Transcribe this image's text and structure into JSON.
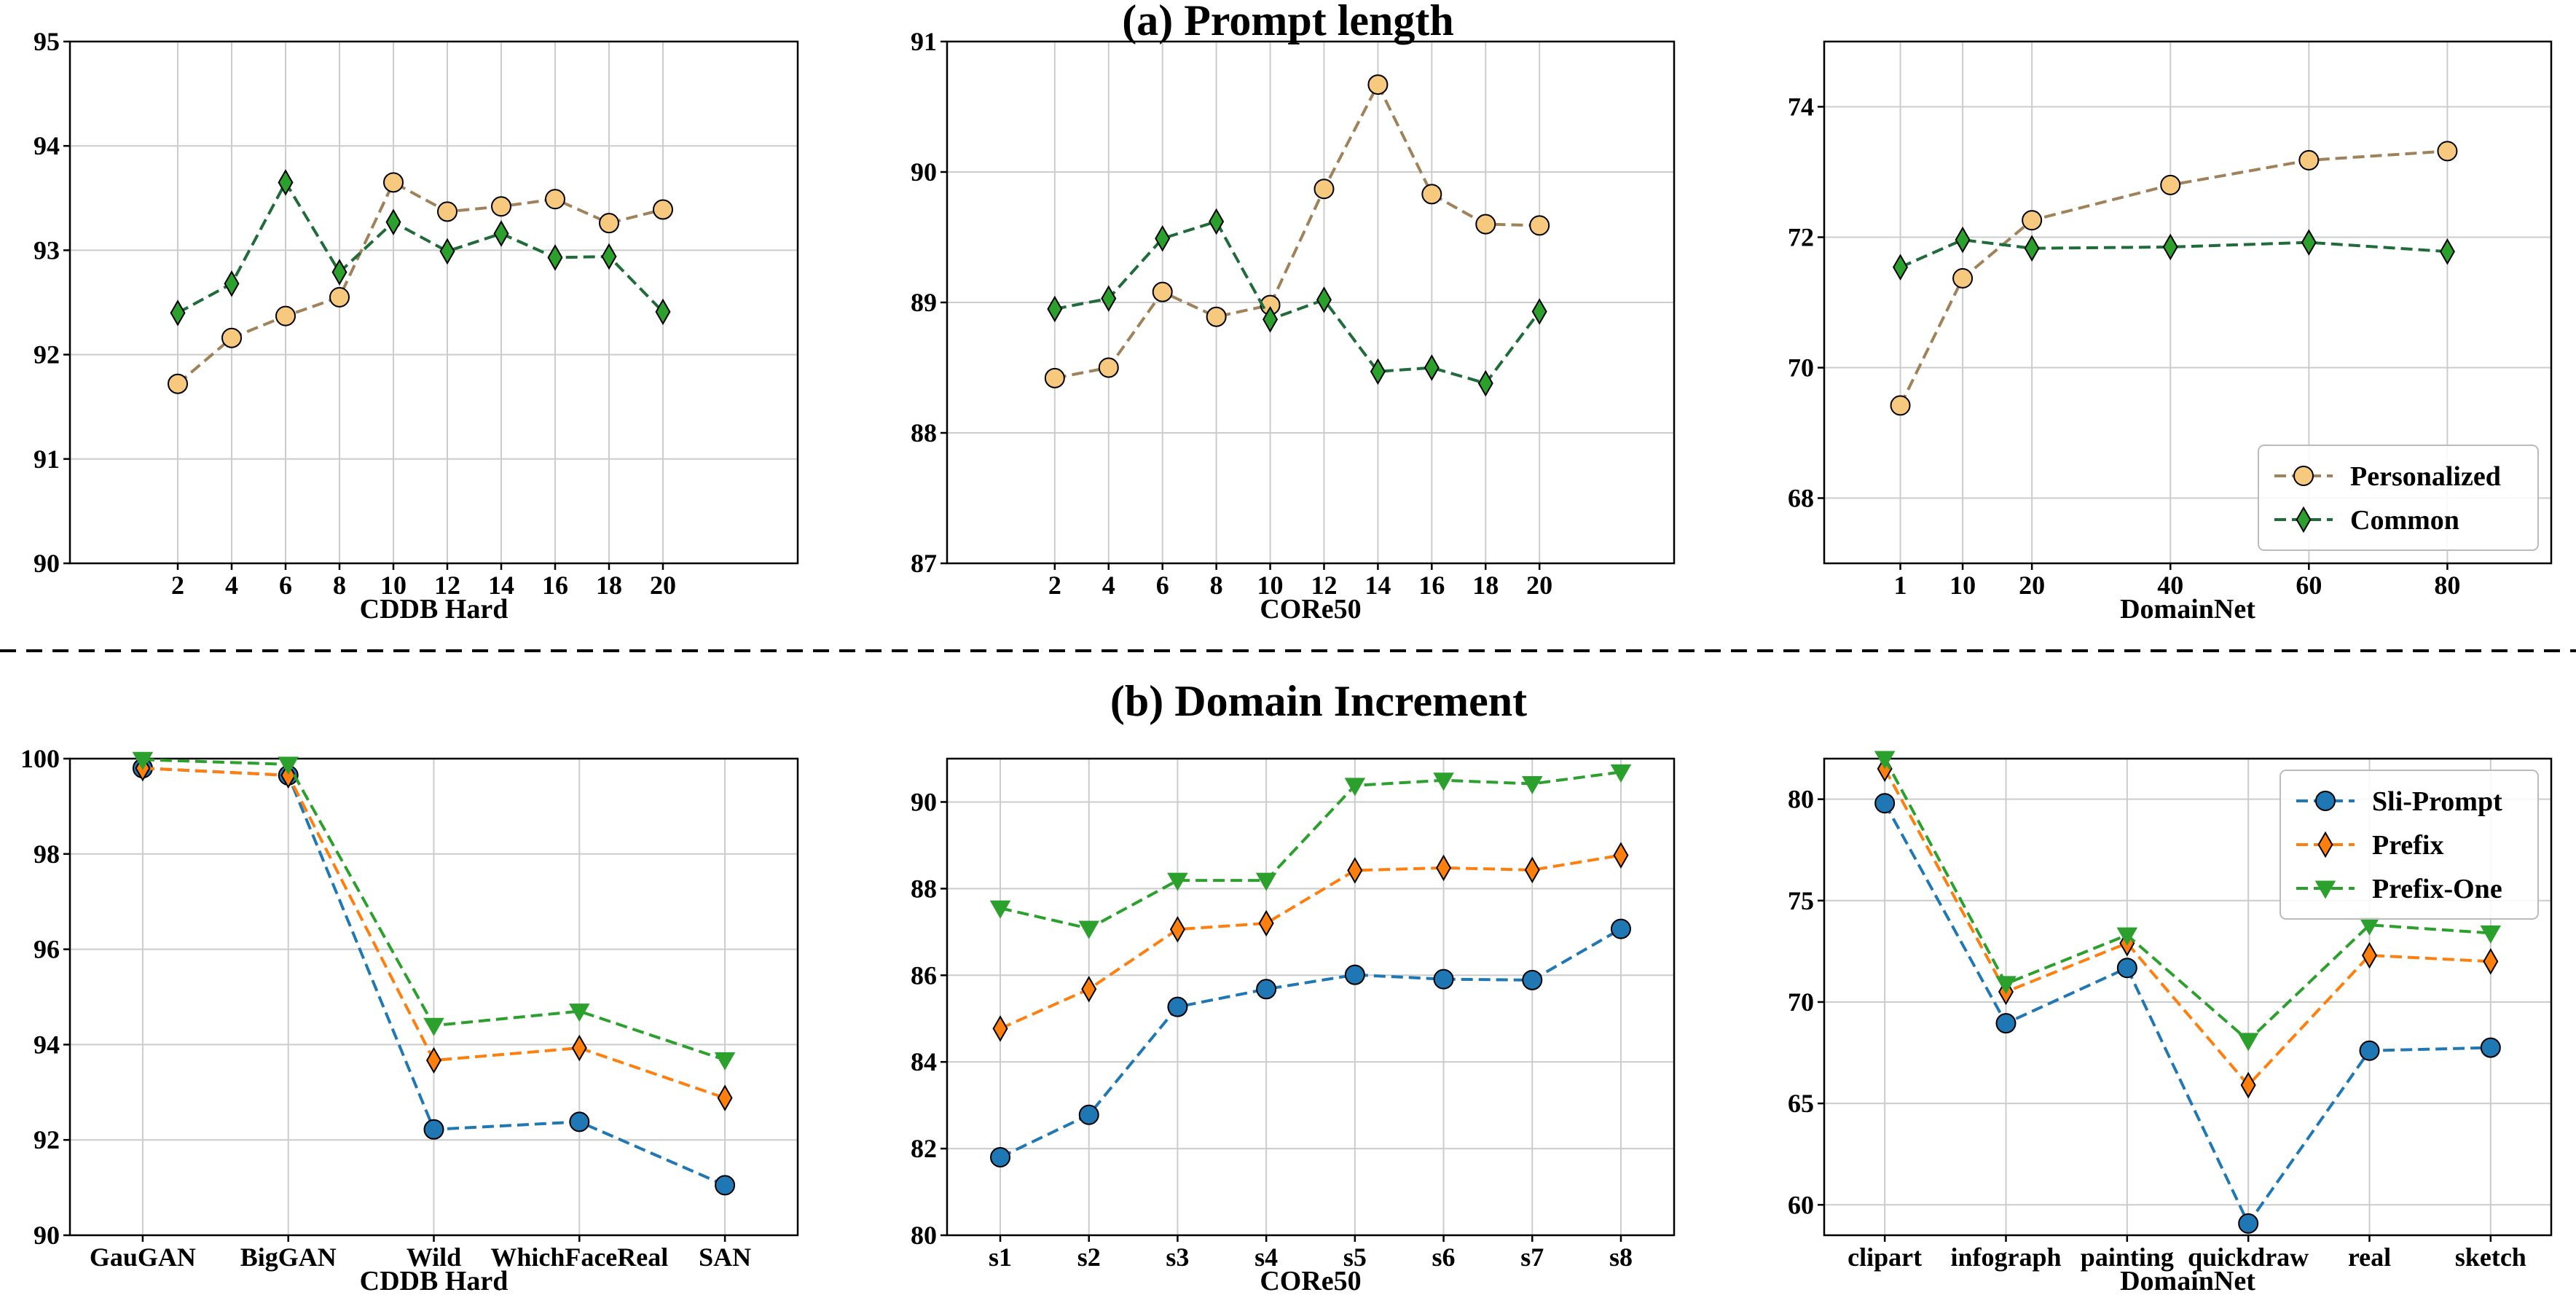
{
  "sections": {
    "a_title": "(a) Prompt length",
    "b_title": "(b) Domain Increment"
  },
  "colors": {
    "personalized": "#a0825a",
    "personalized_fill": "#f6c97f",
    "common": "#1f6b3a",
    "common_fill": "#2ca02c",
    "sli_prompt": "#1f77b4",
    "prefix": "#ff7f0e",
    "prefix_one": "#2ca02c",
    "grid": "#cccccc"
  },
  "chart_data": [
    {
      "id": "a1",
      "type": "line",
      "xlabel": "CDDB Hard",
      "x_type": "numeric",
      "x": [
        2,
        4,
        6,
        8,
        10,
        12,
        14,
        16,
        18,
        20
      ],
      "xlim": [
        -2,
        25
      ],
      "ylim": [
        90,
        95
      ],
      "yticks": [
        90,
        91,
        92,
        93,
        94,
        95
      ],
      "grid": true,
      "series": [
        {
          "key": "personalized",
          "marker": "circle",
          "values": [
            91.72,
            92.16,
            92.37,
            92.55,
            93.65,
            93.37,
            93.42,
            93.49,
            93.26,
            93.39
          ]
        },
        {
          "key": "common",
          "marker": "diamond",
          "values": [
            92.4,
            92.68,
            93.65,
            92.79,
            93.27,
            92.99,
            93.16,
            92.93,
            92.94,
            92.41
          ]
        }
      ]
    },
    {
      "id": "a2",
      "type": "line",
      "xlabel": "CORe50",
      "x_type": "numeric",
      "x": [
        2,
        4,
        6,
        8,
        10,
        12,
        14,
        16,
        18,
        20
      ],
      "xlim": [
        -2,
        25
      ],
      "ylim": [
        87,
        91
      ],
      "yticks": [
        87,
        88,
        89,
        90,
        91
      ],
      "grid": true,
      "series": [
        {
          "key": "personalized",
          "marker": "circle",
          "values": [
            88.42,
            88.5,
            89.08,
            88.89,
            88.98,
            89.87,
            90.67,
            89.83,
            89.6,
            89.59
          ]
        },
        {
          "key": "common",
          "marker": "diamond",
          "values": [
            88.95,
            89.03,
            89.49,
            89.62,
            88.87,
            89.02,
            88.47,
            88.5,
            88.38,
            88.93
          ]
        }
      ]
    },
    {
      "id": "a3",
      "type": "line",
      "xlabel": "DomainNet",
      "x_type": "numeric",
      "x": [
        1,
        10,
        20,
        40,
        60,
        80
      ],
      "xlim": [
        -10,
        95
      ],
      "ylim": [
        67,
        75
      ],
      "yticks": [
        68,
        70,
        72,
        74
      ],
      "grid": true,
      "legend": "lower-right",
      "series": [
        {
          "key": "personalized",
          "name": "Personalized",
          "marker": "circle",
          "values": [
            69.42,
            71.37,
            72.26,
            72.8,
            73.18,
            73.32
          ]
        },
        {
          "key": "common",
          "name": "Common",
          "marker": "diamond",
          "values": [
            71.54,
            71.96,
            71.83,
            71.85,
            71.92,
            71.78
          ]
        }
      ]
    },
    {
      "id": "b1",
      "type": "line",
      "xlabel": "CDDB Hard",
      "x_type": "category",
      "categories": [
        "GauGAN",
        "BigGAN",
        "Wild",
        "WhichFaceReal",
        "SAN"
      ],
      "ylim": [
        90,
        100
      ],
      "yticks": [
        90,
        92,
        94,
        96,
        98,
        100
      ],
      "grid": true,
      "series": [
        {
          "key": "sli_prompt",
          "marker": "circle",
          "values": [
            99.8,
            99.65,
            92.22,
            92.38,
            91.05
          ]
        },
        {
          "key": "prefix",
          "marker": "diamond",
          "values": [
            99.8,
            99.65,
            93.67,
            93.93,
            92.88
          ]
        },
        {
          "key": "prefix_one",
          "marker": "triangle-down",
          "values": [
            99.98,
            99.88,
            94.4,
            94.7,
            93.68
          ]
        }
      ]
    },
    {
      "id": "b2",
      "type": "line",
      "xlabel": "CORe50",
      "x_type": "category",
      "categories": [
        "s1",
        "s2",
        "s3",
        "s4",
        "s5",
        "s6",
        "s7",
        "s8"
      ],
      "ylim": [
        80,
        91
      ],
      "yticks": [
        80,
        82,
        84,
        86,
        88,
        90
      ],
      "grid": true,
      "series": [
        {
          "key": "sli_prompt",
          "marker": "circle",
          "values": [
            81.8,
            82.78,
            85.27,
            85.68,
            86.01,
            85.91,
            85.89,
            87.07
          ]
        },
        {
          "key": "prefix",
          "marker": "diamond",
          "values": [
            84.77,
            85.68,
            87.06,
            87.2,
            88.42,
            88.48,
            88.43,
            88.77
          ]
        },
        {
          "key": "prefix_one",
          "marker": "triangle-down",
          "values": [
            87.55,
            87.08,
            88.19,
            88.19,
            90.38,
            90.5,
            90.42,
            90.69
          ]
        }
      ]
    },
    {
      "id": "b3",
      "type": "line",
      "xlabel": "DomainNet",
      "x_type": "category",
      "categories": [
        "clipart",
        "infograph",
        "painting",
        "quickdraw",
        "real",
        "sketch"
      ],
      "ylim": [
        58.5,
        82
      ],
      "yticks": [
        60,
        65,
        70,
        75,
        80
      ],
      "grid": true,
      "legend": "upper-right",
      "series": [
        {
          "key": "sli_prompt",
          "name": "Sli-Prompt",
          "marker": "circle",
          "values": [
            79.8,
            68.95,
            71.68,
            59.08,
            67.6,
            67.75
          ]
        },
        {
          "key": "prefix",
          "name": "Prefix",
          "marker": "diamond",
          "values": [
            81.5,
            70.5,
            72.9,
            65.9,
            72.3,
            72.0
          ]
        },
        {
          "key": "prefix_one",
          "name": "Prefix-One",
          "marker": "triangle-down",
          "values": [
            82.0,
            70.9,
            73.3,
            68.1,
            73.8,
            73.4
          ]
        }
      ]
    }
  ]
}
